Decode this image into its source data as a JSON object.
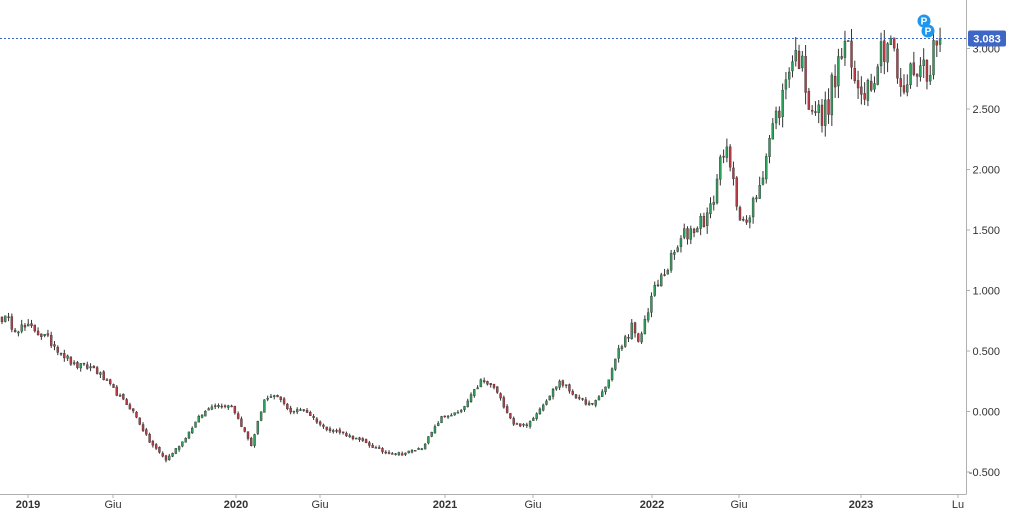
{
  "chart_data": {
    "type": "candlestick",
    "title": "",
    "xlabel": "",
    "ylabel": "",
    "ylim": [
      -0.58,
      3.28
    ],
    "y_ticks": [
      -0.5,
      0.0,
      0.5,
      1.0,
      1.5,
      2.0,
      2.5,
      3.0
    ],
    "y_tick_labels": [
      "-0.500",
      "0.000",
      "0.500",
      "1.000",
      "1.500",
      "2.000",
      "2.500",
      "3.000"
    ],
    "x_tick_labels": [
      "2019",
      "Giu",
      "2020",
      "Giu",
      "2021",
      "Giu",
      "2022",
      "Giu",
      "2023",
      "Lu"
    ],
    "x_tick_bold": [
      true,
      false,
      true,
      false,
      true,
      false,
      true,
      false,
      true,
      false
    ],
    "last_price": 3.083,
    "last_price_label": "3.083",
    "markers": [
      "P",
      "P"
    ],
    "grid": false,
    "legend": "none",
    "colors": {
      "up": "#2e9e5b",
      "down": "#b83c45",
      "wick": "#333333",
      "axis": "#b0b0b0",
      "price_line": "#3d66c6",
      "price_label_bg": "#3d66c6",
      "marker": "#1e96f0",
      "tick_text": "#333333"
    },
    "anchors": [
      [
        0,
        0.78
      ],
      [
        4,
        0.7
      ],
      [
        10,
        0.68
      ],
      [
        16,
        0.55
      ],
      [
        22,
        0.38
      ],
      [
        28,
        0.36
      ],
      [
        34,
        0.18
      ],
      [
        40,
        0.0
      ],
      [
        45,
        -0.25
      ],
      [
        50,
        -0.4
      ],
      [
        55,
        -0.25
      ],
      [
        60,
        -0.05
      ],
      [
        64,
        0.05
      ],
      [
        70,
        0.05
      ],
      [
        76,
        -0.28
      ],
      [
        80,
        0.1
      ],
      [
        84,
        0.12
      ],
      [
        88,
        0.0
      ],
      [
        92,
        0.02
      ],
      [
        98,
        -0.13
      ],
      [
        104,
        -0.18
      ],
      [
        110,
        -0.25
      ],
      [
        116,
        -0.33
      ],
      [
        122,
        -0.35
      ],
      [
        128,
        -0.3
      ],
      [
        134,
        -0.05
      ],
      [
        140,
        0.0
      ],
      [
        146,
        0.25
      ],
      [
        150,
        0.2
      ],
      [
        156,
        -0.1
      ],
      [
        160,
        -0.12
      ],
      [
        166,
        0.1
      ],
      [
        170,
        0.25
      ],
      [
        176,
        0.1
      ],
      [
        180,
        0.05
      ],
      [
        184,
        0.2
      ],
      [
        188,
        0.5
      ],
      [
        192,
        0.7
      ],
      [
        194,
        0.55
      ],
      [
        198,
        0.95
      ],
      [
        204,
        1.25
      ],
      [
        208,
        1.45
      ],
      [
        212,
        1.55
      ],
      [
        216,
        1.65
      ],
      [
        220,
        2.2
      ],
      [
        224,
        1.75
      ],
      [
        227,
        1.5
      ],
      [
        230,
        1.8
      ],
      [
        234,
        2.25
      ],
      [
        238,
        2.6
      ],
      [
        240,
        2.9
      ],
      [
        243,
        2.95
      ],
      [
        246,
        2.6
      ],
      [
        250,
        2.4
      ],
      [
        254,
        2.75
      ],
      [
        257,
        3.05
      ],
      [
        260,
        2.7
      ],
      [
        264,
        2.7
      ],
      [
        268,
        3.0
      ],
      [
        271,
        3.1
      ],
      [
        274,
        2.6
      ],
      [
        278,
        2.85
      ],
      [
        282,
        2.85
      ],
      [
        286,
        3.08
      ]
    ]
  }
}
